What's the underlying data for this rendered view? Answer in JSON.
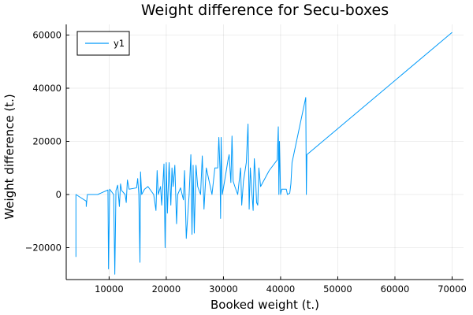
{
  "chart_data": {
    "type": "line",
    "title": "Weight difference for Secu-boxes",
    "xlabel": "Booked weight (t.)",
    "ylabel": "Weight difference (t.)",
    "xlim": [
      2500,
      72000
    ],
    "ylim": [
      -32000,
      64000
    ],
    "xticks": [
      {
        "value": 10000,
        "label": "10000"
      },
      {
        "value": 20000,
        "label": "20000"
      },
      {
        "value": 30000,
        "label": "30000"
      },
      {
        "value": 40000,
        "label": "40000"
      },
      {
        "value": 50000,
        "label": "50000"
      },
      {
        "value": 60000,
        "label": "60000"
      },
      {
        "value": 70000,
        "label": "70000"
      }
    ],
    "yticks": [
      {
        "value": -20000,
        "label": "−20000"
      },
      {
        "value": 0,
        "label": "0"
      },
      {
        "value": 20000,
        "label": "20000"
      },
      {
        "value": 40000,
        "label": "40000"
      },
      {
        "value": 60000,
        "label": "60000"
      }
    ],
    "grid": true,
    "legend_position": "top-left",
    "series_color": "#009AFA",
    "series": [
      {
        "name": "y1",
        "points": [
          [
            4200,
            -23500
          ],
          [
            4200,
            0
          ],
          [
            6000,
            -2500
          ],
          [
            6000,
            -4500
          ],
          [
            6200,
            0
          ],
          [
            8000,
            0
          ],
          [
            9800,
            1700
          ],
          [
            9900,
            -28000
          ],
          [
            10100,
            2000
          ],
          [
            10800,
            0
          ],
          [
            11000,
            -30000
          ],
          [
            11200,
            1500
          ],
          [
            11500,
            3500
          ],
          [
            11800,
            -4500
          ],
          [
            12000,
            4000
          ],
          [
            12200,
            1500
          ],
          [
            12800,
            0
          ],
          [
            13000,
            -3000
          ],
          [
            13200,
            5500
          ],
          [
            13500,
            2000
          ],
          [
            14800,
            2500
          ],
          [
            15000,
            6000
          ],
          [
            15200,
            0
          ],
          [
            15400,
            -25500
          ],
          [
            15500,
            8500
          ],
          [
            15700,
            0
          ],
          [
            16200,
            2000
          ],
          [
            16800,
            3000
          ],
          [
            17800,
            0
          ],
          [
            18200,
            -6000
          ],
          [
            18400,
            9000
          ],
          [
            18600,
            0
          ],
          [
            19000,
            3000
          ],
          [
            19200,
            -4000
          ],
          [
            19600,
            11500
          ],
          [
            19800,
            -20000
          ],
          [
            20000,
            12000
          ],
          [
            20200,
            -7000
          ],
          [
            20500,
            12000
          ],
          [
            20800,
            -4000
          ],
          [
            21000,
            10000
          ],
          [
            21200,
            3000
          ],
          [
            21500,
            11000
          ],
          [
            21800,
            -11000
          ],
          [
            22000,
            0
          ],
          [
            22500,
            2500
          ],
          [
            23000,
            -2000
          ],
          [
            23200,
            9000
          ],
          [
            23500,
            -16500
          ],
          [
            24000,
            0
          ],
          [
            24300,
            15000
          ],
          [
            24500,
            -15000
          ],
          [
            24700,
            11000
          ],
          [
            24900,
            -14500
          ],
          [
            25200,
            11000
          ],
          [
            25500,
            3000
          ],
          [
            26000,
            0
          ],
          [
            26300,
            14500
          ],
          [
            26600,
            -5500
          ],
          [
            27000,
            10000
          ],
          [
            27500,
            5000
          ],
          [
            28000,
            0
          ],
          [
            28500,
            10000
          ],
          [
            29000,
            10000
          ],
          [
            29200,
            21500
          ],
          [
            29400,
            9000
          ],
          [
            29500,
            -9000
          ],
          [
            29600,
            21500
          ],
          [
            29800,
            0
          ],
          [
            30200,
            5000
          ],
          [
            30800,
            13000
          ],
          [
            31000,
            15000
          ],
          [
            31300,
            4500
          ],
          [
            31500,
            22000
          ],
          [
            31700,
            5000
          ],
          [
            32000,
            3000
          ],
          [
            32500,
            0
          ],
          [
            33000,
            10000
          ],
          [
            33200,
            -4000
          ],
          [
            33500,
            5000
          ],
          [
            34000,
            12000
          ],
          [
            34300,
            26500
          ],
          [
            34500,
            -5500
          ],
          [
            34700,
            10000
          ],
          [
            35000,
            0
          ],
          [
            35200,
            -6000
          ],
          [
            35400,
            13500
          ],
          [
            35600,
            7000
          ],
          [
            35800,
            -3000
          ],
          [
            36000,
            -4000
          ],
          [
            36200,
            10000
          ],
          [
            36500,
            3000
          ],
          [
            38000,
            9000
          ],
          [
            39400,
            13000
          ],
          [
            39600,
            25500
          ],
          [
            39700,
            0
          ],
          [
            39800,
            20000
          ],
          [
            40000,
            0
          ],
          [
            40200,
            2000
          ],
          [
            41000,
            2000
          ],
          [
            41200,
            0
          ],
          [
            41600,
            500
          ],
          [
            41800,
            4000
          ],
          [
            42000,
            12000
          ],
          [
            44400,
            36500
          ],
          [
            44500,
            0
          ],
          [
            44600,
            15000
          ],
          [
            70000,
            61000
          ]
        ]
      }
    ]
  }
}
